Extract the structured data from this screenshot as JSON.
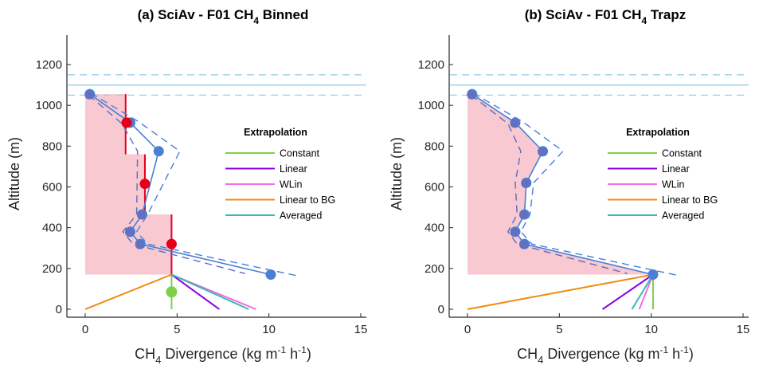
{
  "chart_data": [
    {
      "type": "line",
      "title": "(a) SciAv - F01 CH",
      "title_sub": "4",
      "title_suffix": " Binned",
      "xlabel": "CH",
      "xlabel_sub": "4",
      "xlabel_suffix": " Divergence (kg m",
      "xlabel_sup1": "-1",
      "xlabel_mid": " h",
      "xlabel_sup2": "-1",
      "xlabel_end": ")",
      "ylabel": "Altitude (m)",
      "xlim": [
        -1,
        15
      ],
      "ylim": [
        -20,
        1350
      ],
      "xticks": [
        0,
        5,
        10,
        15
      ],
      "yticks": [
        0,
        200,
        400,
        600,
        800,
        1000,
        1200
      ],
      "grid": false,
      "boundary_layer": {
        "center": 1100,
        "lower": 1050,
        "upper": 1150,
        "color": "#9fcfe8"
      },
      "fill": {
        "mode": "binned",
        "color": "#f8c9d0",
        "bins": [
          {
            "x": 2.2,
            "top": 1055,
            "bottom": 760
          },
          {
            "x": 3.25,
            "top": 760,
            "bottom": 465
          },
          {
            "x": 4.7,
            "top": 465,
            "bottom": 170
          }
        ]
      },
      "profile": {
        "color": "#4a7fd4",
        "points": [
          [
            0.25,
            1055
          ],
          [
            2.45,
            915
          ],
          [
            4.0,
            775
          ],
          [
            3.1,
            465
          ],
          [
            2.45,
            380
          ],
          [
            3.0,
            320
          ],
          [
            10.1,
            170
          ]
        ],
        "upper": [
          [
            0.3,
            1060
          ],
          [
            2.9,
            920
          ],
          [
            5.15,
            775
          ],
          [
            3.4,
            465
          ],
          [
            2.8,
            380
          ],
          [
            3.4,
            320
          ],
          [
            11.5,
            165
          ]
        ],
        "lower": [
          [
            0.2,
            1050
          ],
          [
            2.0,
            910
          ],
          [
            2.85,
            775
          ],
          [
            2.8,
            465
          ],
          [
            2.05,
            380
          ],
          [
            2.6,
            320
          ],
          [
            8.7,
            175
          ]
        ]
      },
      "binned_points": {
        "color": "#e3001b",
        "points": [
          [
            2.25,
            915
          ],
          [
            3.25,
            615
          ],
          [
            4.7,
            320
          ]
        ]
      },
      "extrapolation": {
        "origin": [
          4.7,
          170
        ],
        "lines": [
          {
            "name": "Constant",
            "color": "#7ed04b",
            "end": [
              4.7,
              0
            ]
          },
          {
            "name": "Linear",
            "color": "#8a00e6",
            "end": [
              7.3,
              0
            ]
          },
          {
            "name": "WLin",
            "color": "#ee6ee8",
            "end": [
              9.3,
              0
            ]
          },
          {
            "name": "Linear to BG",
            "color": "#f08a10",
            "end": [
              0,
              0
            ]
          },
          {
            "name": "Averaged",
            "color": "#3fb7b0",
            "end": [
              8.9,
              0
            ]
          }
        ],
        "constant_point": [
          4.7,
          85
        ]
      },
      "legend": {
        "title": "Extrapolation",
        "position": "center-right",
        "entries": [
          "Constant",
          "Linear",
          "WLin",
          "Linear to BG",
          "Averaged"
        ]
      }
    },
    {
      "type": "line",
      "title": "(b) SciAv - F01 CH",
      "title_sub": "4",
      "title_suffix": " Trapz",
      "xlabel": "CH",
      "xlabel_sub": "4",
      "xlabel_suffix": " Divergence (kg m",
      "xlabel_sup1": "-1",
      "xlabel_mid": " h",
      "xlabel_sup2": "-1",
      "xlabel_end": ")",
      "ylabel": "Altitude (m)",
      "xlim": [
        -1,
        15
      ],
      "ylim": [
        -20,
        1350
      ],
      "xticks": [
        0,
        5,
        10,
        15
      ],
      "yticks": [
        0,
        200,
        400,
        600,
        800,
        1000,
        1200
      ],
      "grid": false,
      "boundary_layer": {
        "center": 1100,
        "lower": 1050,
        "upper": 1150,
        "color": "#9fcfe8"
      },
      "fill": {
        "mode": "trapz",
        "color": "#f8c9d0"
      },
      "profile": {
        "color": "#4a7fd4",
        "points": [
          [
            0.25,
            1055
          ],
          [
            2.6,
            915
          ],
          [
            4.1,
            775
          ],
          [
            3.2,
            620
          ],
          [
            3.1,
            465
          ],
          [
            2.6,
            380
          ],
          [
            3.1,
            320
          ],
          [
            10.1,
            170
          ]
        ],
        "upper": [
          [
            0.3,
            1060
          ],
          [
            3.0,
            920
          ],
          [
            5.2,
            775
          ],
          [
            3.6,
            620
          ],
          [
            3.4,
            465
          ],
          [
            2.9,
            380
          ],
          [
            3.5,
            320
          ],
          [
            11.5,
            165
          ]
        ],
        "lower": [
          [
            0.2,
            1050
          ],
          [
            2.2,
            910
          ],
          [
            2.9,
            775
          ],
          [
            2.6,
            620
          ],
          [
            2.7,
            465
          ],
          [
            2.2,
            380
          ],
          [
            2.7,
            320
          ],
          [
            8.7,
            175
          ]
        ]
      },
      "extrapolation": {
        "origin": [
          10.1,
          170
        ],
        "lines": [
          {
            "name": "Constant",
            "color": "#7ed04b",
            "end": [
              10.1,
              0
            ]
          },
          {
            "name": "Linear",
            "color": "#8a00e6",
            "end": [
              7.35,
              0
            ]
          },
          {
            "name": "WLin",
            "color": "#ee6ee8",
            "end": [
              9.35,
              0
            ]
          },
          {
            "name": "Linear to BG",
            "color": "#f08a10",
            "end": [
              0,
              0
            ]
          },
          {
            "name": "Averaged",
            "color": "#3fb7b0",
            "end": [
              8.95,
              0
            ]
          }
        ]
      },
      "legend": {
        "title": "Extrapolation",
        "position": "center-right",
        "entries": [
          "Constant",
          "Linear",
          "WLin",
          "Linear to BG",
          "Averaged"
        ]
      }
    }
  ]
}
